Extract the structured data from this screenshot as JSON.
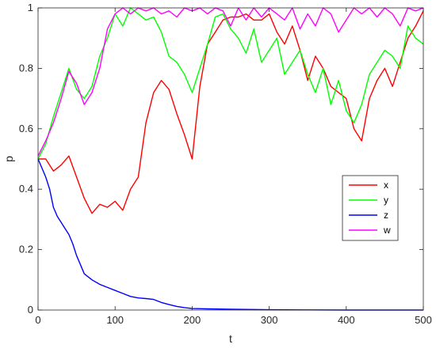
{
  "chart_data": {
    "type": "line",
    "title": "",
    "xlabel": "t",
    "ylabel": "p",
    "xlim": [
      0,
      500
    ],
    "ylim": [
      0,
      1
    ],
    "xticks": [
      "0",
      "100",
      "200",
      "300",
      "400",
      "500"
    ],
    "yticks": [
      "0",
      "0.2",
      "0.4",
      "0.6",
      "0.8",
      "1"
    ],
    "grid": false,
    "legend_position": "right",
    "series": [
      {
        "name": "x",
        "color": "#ff0000",
        "points": [
          [
            0,
            0.5
          ],
          [
            10,
            0.5
          ],
          [
            20,
            0.46
          ],
          [
            30,
            0.48
          ],
          [
            40,
            0.51
          ],
          [
            50,
            0.44
          ],
          [
            60,
            0.37
          ],
          [
            70,
            0.32
          ],
          [
            80,
            0.35
          ],
          [
            90,
            0.34
          ],
          [
            100,
            0.36
          ],
          [
            110,
            0.33
          ],
          [
            120,
            0.4
          ],
          [
            130,
            0.44
          ],
          [
            140,
            0.62
          ],
          [
            150,
            0.72
          ],
          [
            160,
            0.76
          ],
          [
            170,
            0.73
          ],
          [
            180,
            0.65
          ],
          [
            190,
            0.58
          ],
          [
            200,
            0.5
          ],
          [
            210,
            0.74
          ],
          [
            220,
            0.88
          ],
          [
            230,
            0.92
          ],
          [
            240,
            0.96
          ],
          [
            250,
            0.97
          ],
          [
            260,
            0.97
          ],
          [
            270,
            0.98
          ],
          [
            280,
            0.96
          ],
          [
            290,
            0.96
          ],
          [
            300,
            0.98
          ],
          [
            310,
            0.92
          ],
          [
            320,
            0.88
          ],
          [
            330,
            0.94
          ],
          [
            340,
            0.86
          ],
          [
            350,
            0.76
          ],
          [
            360,
            0.84
          ],
          [
            370,
            0.8
          ],
          [
            380,
            0.74
          ],
          [
            390,
            0.72
          ],
          [
            400,
            0.7
          ],
          [
            410,
            0.6
          ],
          [
            420,
            0.56
          ],
          [
            430,
            0.7
          ],
          [
            440,
            0.76
          ],
          [
            450,
            0.8
          ],
          [
            460,
            0.74
          ],
          [
            470,
            0.82
          ],
          [
            480,
            0.9
          ],
          [
            490,
            0.94
          ],
          [
            500,
            0.99
          ]
        ]
      },
      {
        "name": "y",
        "color": "#00ff00",
        "points": [
          [
            0,
            0.5
          ],
          [
            10,
            0.55
          ],
          [
            20,
            0.64
          ],
          [
            30,
            0.72
          ],
          [
            40,
            0.8
          ],
          [
            50,
            0.73
          ],
          [
            60,
            0.7
          ],
          [
            70,
            0.74
          ],
          [
            80,
            0.84
          ],
          [
            90,
            0.9
          ],
          [
            100,
            0.98
          ],
          [
            110,
            0.94
          ],
          [
            120,
            1.0
          ],
          [
            130,
            0.98
          ],
          [
            140,
            0.96
          ],
          [
            150,
            0.97
          ],
          [
            160,
            0.92
          ],
          [
            170,
            0.84
          ],
          [
            180,
            0.82
          ],
          [
            190,
            0.78
          ],
          [
            200,
            0.72
          ],
          [
            210,
            0.8
          ],
          [
            220,
            0.88
          ],
          [
            230,
            0.97
          ],
          [
            240,
            0.98
          ],
          [
            250,
            0.93
          ],
          [
            260,
            0.9
          ],
          [
            270,
            0.85
          ],
          [
            280,
            0.93
          ],
          [
            290,
            0.82
          ],
          [
            300,
            0.86
          ],
          [
            310,
            0.9
          ],
          [
            320,
            0.78
          ],
          [
            330,
            0.82
          ],
          [
            340,
            0.86
          ],
          [
            350,
            0.78
          ],
          [
            360,
            0.72
          ],
          [
            370,
            0.8
          ],
          [
            380,
            0.68
          ],
          [
            390,
            0.76
          ],
          [
            400,
            0.66
          ],
          [
            410,
            0.62
          ],
          [
            420,
            0.68
          ],
          [
            430,
            0.78
          ],
          [
            440,
            0.82
          ],
          [
            450,
            0.86
          ],
          [
            460,
            0.84
          ],
          [
            470,
            0.8
          ],
          [
            480,
            0.94
          ],
          [
            490,
            0.9
          ],
          [
            500,
            0.88
          ]
        ]
      },
      {
        "name": "z",
        "color": "#0000ff",
        "points": [
          [
            0,
            0.5
          ],
          [
            5,
            0.47
          ],
          [
            10,
            0.44
          ],
          [
            15,
            0.4
          ],
          [
            20,
            0.34
          ],
          [
            25,
            0.31
          ],
          [
            30,
            0.29
          ],
          [
            35,
            0.27
          ],
          [
            40,
            0.25
          ],
          [
            45,
            0.22
          ],
          [
            50,
            0.18
          ],
          [
            55,
            0.15
          ],
          [
            60,
            0.12
          ],
          [
            70,
            0.1
          ],
          [
            80,
            0.085
          ],
          [
            90,
            0.075
          ],
          [
            100,
            0.065
          ],
          [
            110,
            0.055
          ],
          [
            120,
            0.045
          ],
          [
            130,
            0.04
          ],
          [
            140,
            0.038
          ],
          [
            150,
            0.035
          ],
          [
            160,
            0.025
          ],
          [
            170,
            0.018
          ],
          [
            180,
            0.012
          ],
          [
            190,
            0.008
          ],
          [
            200,
            0.005
          ],
          [
            220,
            0.004
          ],
          [
            250,
            0.003
          ],
          [
            300,
            0.001
          ],
          [
            350,
            0.0005
          ],
          [
            400,
            0.0
          ],
          [
            450,
            0.0
          ],
          [
            500,
            0.0
          ]
        ]
      },
      {
        "name": "w",
        "color": "#ff00ff",
        "points": [
          [
            0,
            0.51
          ],
          [
            10,
            0.56
          ],
          [
            20,
            0.62
          ],
          [
            30,
            0.7
          ],
          [
            40,
            0.79
          ],
          [
            50,
            0.75
          ],
          [
            60,
            0.68
          ],
          [
            70,
            0.72
          ],
          [
            80,
            0.8
          ],
          [
            90,
            0.93
          ],
          [
            100,
            0.98
          ],
          [
            110,
            1.0
          ],
          [
            120,
            0.98
          ],
          [
            130,
            1.0
          ],
          [
            140,
            0.99
          ],
          [
            150,
            1.0
          ],
          [
            160,
            0.98
          ],
          [
            170,
            0.99
          ],
          [
            180,
            0.97
          ],
          [
            190,
            1.0
          ],
          [
            200,
            0.99
          ],
          [
            210,
            1.0
          ],
          [
            220,
            0.98
          ],
          [
            230,
            1.0
          ],
          [
            240,
            0.99
          ],
          [
            250,
            0.94
          ],
          [
            260,
            1.0
          ],
          [
            270,
            0.96
          ],
          [
            280,
            1.0
          ],
          [
            290,
            0.97
          ],
          [
            300,
            1.0
          ],
          [
            310,
            0.98
          ],
          [
            320,
            0.96
          ],
          [
            330,
            1.0
          ],
          [
            340,
            0.93
          ],
          [
            350,
            0.98
          ],
          [
            360,
            0.94
          ],
          [
            370,
            1.0
          ],
          [
            380,
            0.98
          ],
          [
            390,
            0.92
          ],
          [
            400,
            0.96
          ],
          [
            410,
            1.0
          ],
          [
            420,
            0.98
          ],
          [
            430,
            1.0
          ],
          [
            440,
            0.97
          ],
          [
            450,
            1.0
          ],
          [
            460,
            0.98
          ],
          [
            470,
            0.94
          ],
          [
            480,
            1.0
          ],
          [
            490,
            0.99
          ],
          [
            500,
            1.0
          ]
        ]
      }
    ]
  }
}
